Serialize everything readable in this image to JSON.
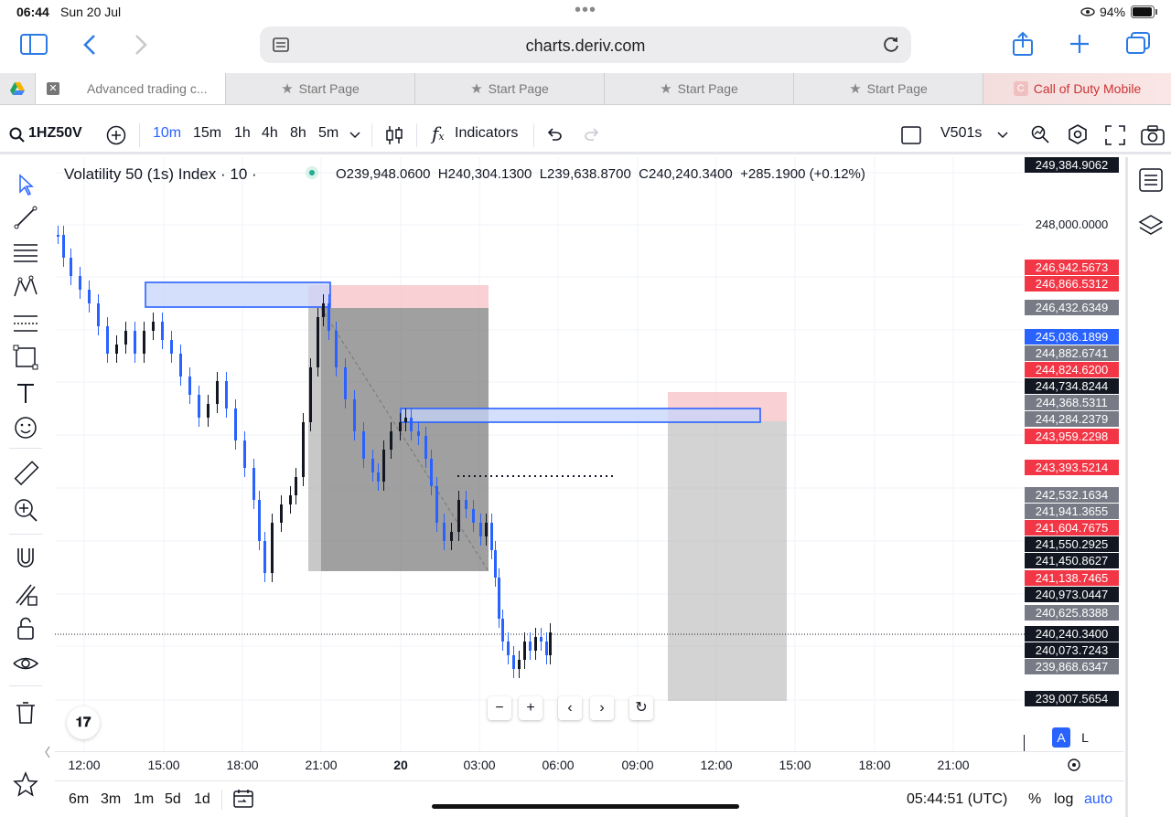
{
  "status": {
    "time": "06:44",
    "date": "Sun 20 Jul",
    "battery": "94%"
  },
  "browser": {
    "url": "charts.deriv.com"
  },
  "tabs": [
    {
      "label": "Advanced trading c...",
      "active": true
    },
    {
      "label": "Start Page"
    },
    {
      "label": "Start Page"
    },
    {
      "label": "Start Page"
    },
    {
      "label": "Start Page"
    },
    {
      "label": "Call of Duty Mobile",
      "favicon": "C"
    }
  ],
  "toolbar": {
    "symbol": "1HZ50V",
    "intervals": [
      "10m",
      "15m",
      "1h",
      "4h",
      "8h",
      "5m"
    ],
    "active_interval": "10m",
    "indicators_label": "Indicators",
    "layout_name": "V501s"
  },
  "legend": {
    "title": "Volatility 50 (1s) Index · 10 ·",
    "open": "O239,948.0600",
    "high": "H240,304.1300",
    "low": "L239,638.8700",
    "close": "C240,240.3400",
    "change": "+285.1900 (+0.12%)"
  },
  "price_labels": [
    {
      "value": "249,384.9062",
      "color": "#131722",
      "top": 0
    },
    {
      "value": "248,000.0000",
      "color": "plain",
      "top": 65
    },
    {
      "value": "246,942.5673",
      "color": "#f23645",
      "top": 112
    },
    {
      "value": "246,866.5312",
      "color": "#f23645",
      "top": 130
    },
    {
      "value": "246,432.6349",
      "color": "#787b86",
      "top": 156
    },
    {
      "value": "245,036.1899",
      "color": "#2962ff",
      "top": 188
    },
    {
      "value": "244,882.6741",
      "color": "#787b86",
      "top": 206
    },
    {
      "value": "244,824.6200",
      "color": "#f23645",
      "top": 224
    },
    {
      "value": "244,734.8244",
      "color": "#131722",
      "top": 242
    },
    {
      "value": "244,368.5311",
      "color": "#787b86",
      "top": 260
    },
    {
      "value": "244,284.2379",
      "color": "#787b86",
      "top": 278
    },
    {
      "value": "243,959.2298",
      "color": "#f23645",
      "top": 297
    },
    {
      "value": "243,393.5214",
      "color": "#f23645",
      "top": 331
    },
    {
      "value": "242,532.1634",
      "color": "#787b86",
      "top": 361
    },
    {
      "value": "241,941.3655",
      "color": "#787b86",
      "top": 379
    },
    {
      "value": "241,604.7675",
      "color": "#f23645",
      "top": 397
    },
    {
      "value": "241,550.2925",
      "color": "#131722",
      "top": 415
    },
    {
      "value": "241,450.8627",
      "color": "#131722",
      "top": 433
    },
    {
      "value": "241,138.7465",
      "color": "#f23645",
      "top": 452
    },
    {
      "value": "240,973.0447",
      "color": "#131722",
      "top": 470
    },
    {
      "value": "240,625.8388",
      "color": "#787b86",
      "top": 490
    },
    {
      "value": "240,240.3400",
      "color": "#131722",
      "top": 513
    },
    {
      "value": "240,073.7243",
      "color": "#131722",
      "top": 531
    },
    {
      "value": "239,868.6347",
      "color": "#787b86",
      "top": 549
    },
    {
      "value": "239,007.5654",
      "color": "#131722",
      "top": 584
    }
  ],
  "time_axis": [
    {
      "label": "12:00",
      "x": 32
    },
    {
      "label": "15:00",
      "x": 119
    },
    {
      "label": "18:00",
      "x": 205
    },
    {
      "label": "21:00",
      "x": 291
    },
    {
      "label": "20",
      "x": 378,
      "bold": true
    },
    {
      "label": "03:00",
      "x": 464
    },
    {
      "label": "06:00",
      "x": 550
    },
    {
      "label": "09:00",
      "x": 637
    },
    {
      "label": "12:00",
      "x": 723
    },
    {
      "label": "15:00",
      "x": 809
    },
    {
      "label": "18:00",
      "x": 896
    },
    {
      "label": "21:00",
      "x": 982
    }
  ],
  "bottom": {
    "ranges": [
      "6m",
      "3m",
      "1m",
      "5d",
      "1d"
    ],
    "clock": "05:44:51 (UTC)",
    "percent": "%",
    "log": "log",
    "auto": "auto"
  },
  "scale_buttons": {
    "a": "A",
    "l": "L"
  }
}
